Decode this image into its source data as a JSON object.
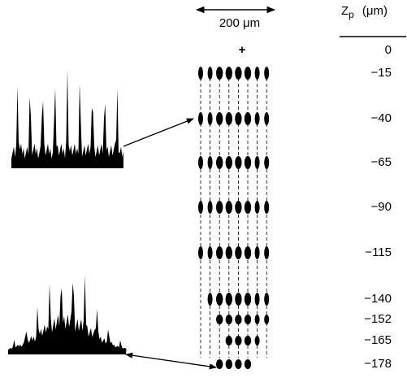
{
  "scale_bar": {
    "label": "200 μm"
  },
  "header": {
    "symbol": "Z",
    "subscript": "p",
    "unit": "(μm)"
  },
  "origin_marker": "+",
  "rows": [
    {
      "z": "0"
    },
    {
      "z": "−15"
    },
    {
      "z": "−40"
    },
    {
      "z": "−65"
    },
    {
      "z": "−90"
    },
    {
      "z": "−115"
    },
    {
      "z": "−140"
    },
    {
      "z": "−152"
    },
    {
      "z": "−165"
    },
    {
      "z": "−178"
    }
  ]
}
